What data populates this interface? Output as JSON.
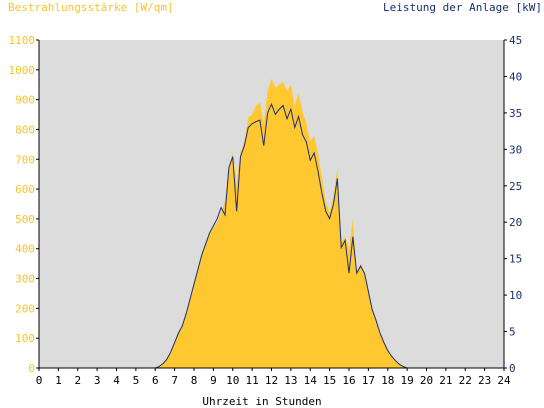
{
  "chart_data": {
    "type": "area",
    "title_left": "Bestrahlungsstärke [W/qm]",
    "title_right": "Leistung der Anlage [kW]",
    "xlabel": "Uhrzeit in Stunden",
    "xlim": [
      0,
      24
    ],
    "x_ticks": [
      0,
      1,
      2,
      3,
      4,
      5,
      6,
      7,
      8,
      9,
      10,
      11,
      12,
      13,
      14,
      15,
      16,
      17,
      18,
      19,
      20,
      21,
      22,
      23,
      24
    ],
    "ylim_left": [
      0,
      1100
    ],
    "y_ticks_left": [
      0,
      100,
      200,
      300,
      400,
      500,
      600,
      700,
      800,
      900,
      1000,
      1100
    ],
    "ylim_right": [
      0,
      45
    ],
    "y_ticks_right": [
      0,
      5,
      10,
      15,
      20,
      25,
      30,
      35,
      40,
      45
    ],
    "grid": false,
    "colors": {
      "irradiance": "#ffc830",
      "power": "#1a2e6e",
      "plot_bg": "#dcdcdc",
      "left_axis_text": "#f4c430",
      "right_axis_text": "#1a2e6e"
    },
    "series": [
      {
        "name": "Bestrahlungsstärke [W/qm]",
        "axis": "left",
        "type": "area",
        "x": [
          0,
          6.0,
          6.2,
          6.4,
          6.6,
          6.8,
          7.0,
          7.2,
          7.4,
          7.6,
          7.8,
          8.0,
          8.2,
          8.4,
          8.6,
          8.8,
          9.0,
          9.2,
          9.4,
          9.6,
          9.8,
          10.0,
          10.2,
          10.4,
          10.6,
          10.8,
          11.0,
          11.2,
          11.4,
          11.6,
          11.8,
          12.0,
          12.2,
          12.4,
          12.6,
          12.8,
          13.0,
          13.2,
          13.4,
          13.6,
          13.8,
          14.0,
          14.2,
          14.4,
          14.6,
          14.8,
          15.0,
          15.2,
          15.4,
          15.6,
          15.8,
          16.0,
          16.2,
          16.4,
          16.6,
          16.8,
          17.0,
          17.2,
          17.4,
          17.6,
          17.8,
          18.0,
          18.2,
          18.4,
          18.6,
          18.8,
          19.0,
          24
        ],
        "values": [
          0,
          0,
          5,
          15,
          30,
          55,
          85,
          115,
          140,
          180,
          230,
          280,
          330,
          380,
          420,
          450,
          470,
          490,
          520,
          560,
          680,
          720,
          620,
          720,
          760,
          840,
          850,
          880,
          890,
          820,
          930,
          970,
          940,
          950,
          960,
          930,
          950,
          880,
          920,
          860,
          820,
          760,
          780,
          720,
          640,
          560,
          520,
          580,
          670,
          420,
          440,
          400,
          500,
          320,
          350,
          320,
          260,
          200,
          160,
          120,
          90,
          60,
          40,
          25,
          12,
          5,
          0,
          0
        ]
      },
      {
        "name": "Leistung der Anlage [kW]",
        "axis": "right",
        "type": "line",
        "x": [
          0,
          6.0,
          6.2,
          6.4,
          6.6,
          6.8,
          7.0,
          7.2,
          7.4,
          7.6,
          7.8,
          8.0,
          8.2,
          8.4,
          8.6,
          8.8,
          9.0,
          9.2,
          9.4,
          9.6,
          9.8,
          10.0,
          10.2,
          10.4,
          10.6,
          10.8,
          11.0,
          11.2,
          11.4,
          11.6,
          11.8,
          12.0,
          12.2,
          12.4,
          12.6,
          12.8,
          13.0,
          13.2,
          13.4,
          13.6,
          13.8,
          14.0,
          14.2,
          14.4,
          14.6,
          14.8,
          15.0,
          15.2,
          15.4,
          15.6,
          15.8,
          16.0,
          16.2,
          16.4,
          16.6,
          16.8,
          17.0,
          17.2,
          17.4,
          17.6,
          17.8,
          18.0,
          18.2,
          18.4,
          18.6,
          18.8,
          19.0,
          24
        ],
        "values": [
          0,
          0,
          0.2,
          0.6,
          1.2,
          2.2,
          3.5,
          4.8,
          5.8,
          7.5,
          9.5,
          11.5,
          13.5,
          15.5,
          17.0,
          18.5,
          19.5,
          20.5,
          22.0,
          21.0,
          27.5,
          29.0,
          21.5,
          29.0,
          30.5,
          33.0,
          33.5,
          33.8,
          34.0,
          30.5,
          35.0,
          36.2,
          34.8,
          35.5,
          36.0,
          34.2,
          35.5,
          33.0,
          34.5,
          32.0,
          31.0,
          28.5,
          29.5,
          27.0,
          24.0,
          21.5,
          20.5,
          22.5,
          26.0,
          16.5,
          17.5,
          13.0,
          18.0,
          13.0,
          14.0,
          13.0,
          10.5,
          8.0,
          6.5,
          4.8,
          3.5,
          2.4,
          1.6,
          1.0,
          0.5,
          0.2,
          0,
          0
        ]
      }
    ]
  }
}
